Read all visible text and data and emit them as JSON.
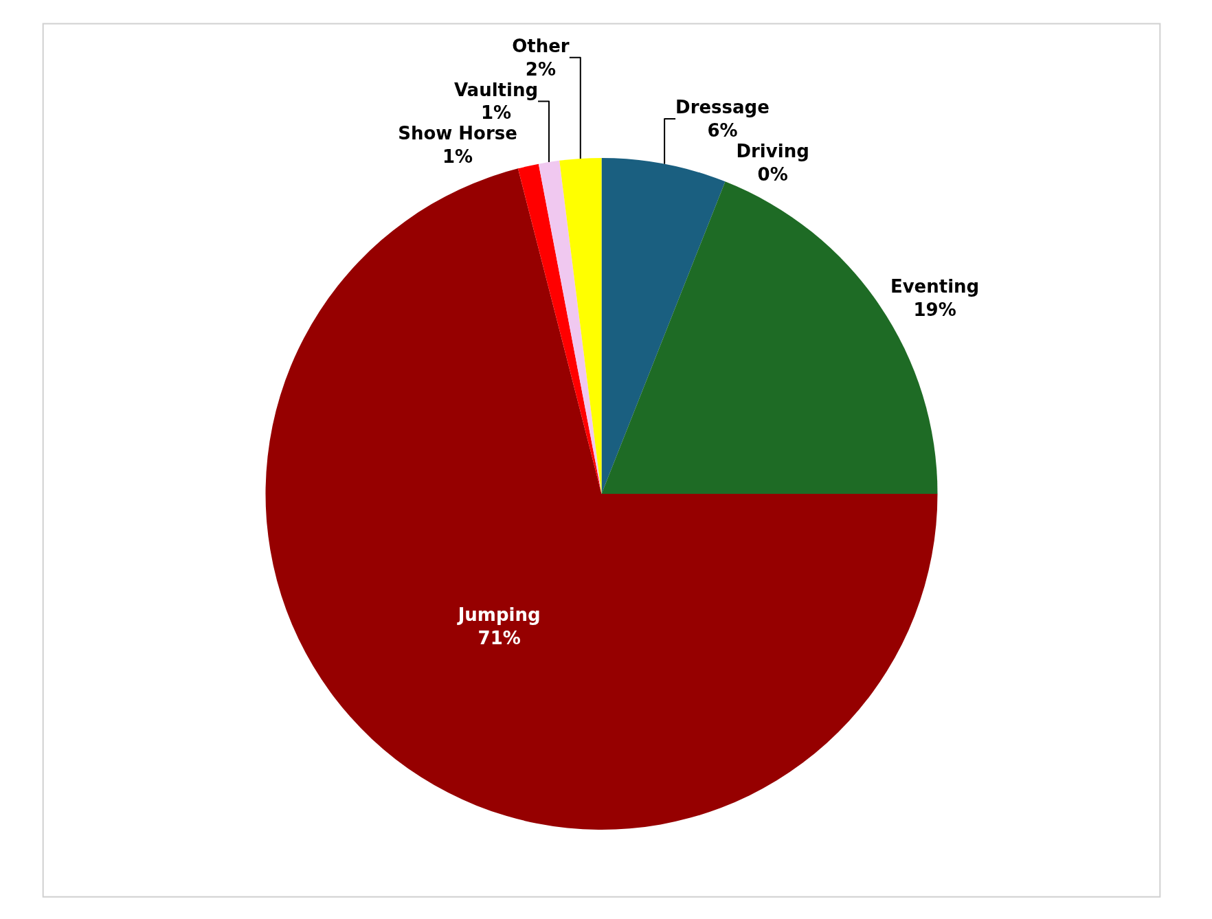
{
  "chart_data": {
    "type": "pie",
    "categories": [
      "Dressage",
      "Driving",
      "Eventing",
      "Jumping",
      "Show Horse",
      "Vaulting",
      "Other"
    ],
    "values": [
      6,
      0,
      19,
      71,
      1,
      1,
      2
    ],
    "value_labels": [
      "6%",
      "0%",
      "19%",
      "71%",
      "1%",
      "1%",
      "2%"
    ],
    "colors": [
      "#1a5f80",
      "#e07030",
      "#1e6b25",
      "#960000",
      "#ff0000",
      "#f0c8f0",
      "#ffff00"
    ],
    "legend": false
  }
}
